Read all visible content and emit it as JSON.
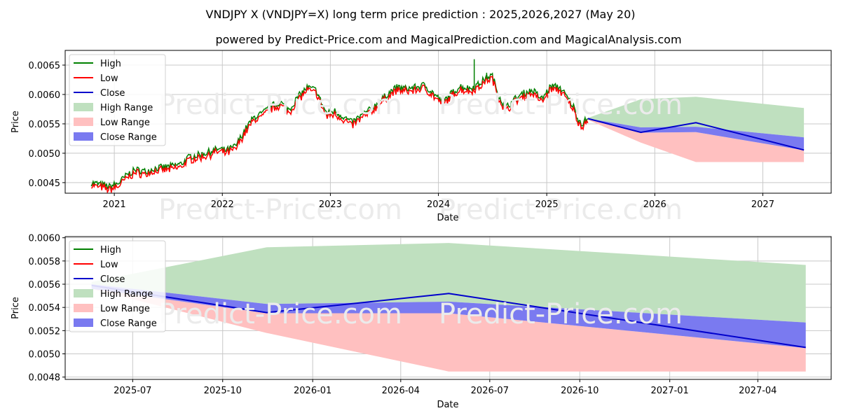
{
  "title": "VNDJPY X (VNDJPY=X) long term price prediction : 2025,2026,2027 (May 20)",
  "subtitle": "powered by Predict-Price.com and MagicalPrediction.com and MagicalAnalysis.com",
  "watermark": "Predict-Price.com",
  "colors": {
    "high": "#008000",
    "low": "#ff0000",
    "close": "#0000cc",
    "high_range": "#bfe0bf",
    "low_range": "#ffc0c0",
    "close_range": "#7a7af0",
    "grid": "#c8c8c8"
  },
  "chart_data": [
    {
      "type": "line",
      "xlabel": "Date",
      "ylabel": "Price",
      "xlim": [
        "2020-07-19",
        "2027-08-20"
      ],
      "ylim": [
        0.00432,
        0.00675
      ],
      "grid": true,
      "legend_position": "top-left",
      "x_ticks": [
        {
          "date": "2021-01-01",
          "label": "2021"
        },
        {
          "date": "2022-01-01",
          "label": "2022"
        },
        {
          "date": "2023-01-01",
          "label": "2023"
        },
        {
          "date": "2024-01-01",
          "label": "2024"
        },
        {
          "date": "2025-01-01",
          "label": "2025"
        },
        {
          "date": "2026-01-01",
          "label": "2026"
        },
        {
          "date": "2027-01-01",
          "label": "2027"
        }
      ],
      "y_ticks": [
        {
          "value": 0.0045,
          "label": "0.0045"
        },
        {
          "value": 0.005,
          "label": "0.0050"
        },
        {
          "value": 0.0055,
          "label": "0.0055"
        },
        {
          "value": 0.006,
          "label": "0.0060"
        },
        {
          "value": 0.0065,
          "label": "0.0065"
        }
      ],
      "legend": [
        "High",
        "Low",
        "Close",
        "High Range",
        "Low Range",
        "Close Range"
      ],
      "history": {
        "x": [
          "2020-10-15",
          "2020-11-15",
          "2020-12-15",
          "2021-01-15",
          "2021-02-15",
          "2021-03-15",
          "2021-04-15",
          "2021-05-15",
          "2021-06-15",
          "2021-07-15",
          "2021-08-15",
          "2021-09-15",
          "2021-10-15",
          "2021-11-15",
          "2021-12-15",
          "2022-01-15",
          "2022-02-15",
          "2022-03-15",
          "2022-04-01",
          "2022-04-20",
          "2022-05-15",
          "2022-06-15",
          "2022-07-15",
          "2022-08-15",
          "2022-09-15",
          "2022-10-15",
          "2022-11-15",
          "2022-12-01",
          "2022-12-20",
          "2023-01-15",
          "2023-02-15",
          "2023-03-15",
          "2023-04-15",
          "2023-05-15",
          "2023-06-15",
          "2023-07-15",
          "2023-08-15",
          "2023-09-15",
          "2023-10-15",
          "2023-11-15",
          "2023-12-15",
          "2024-01-15",
          "2024-02-15",
          "2024-03-15",
          "2024-04-15",
          "2024-05-15",
          "2024-06-15",
          "2024-07-01",
          "2024-07-20",
          "2024-08-15",
          "2024-09-15",
          "2024-10-15",
          "2024-11-15",
          "2024-12-15",
          "2025-01-15",
          "2025-02-15",
          "2025-03-15",
          "2025-04-01",
          "2025-04-15",
          "2025-05-01",
          "2025-05-20"
        ],
        "y": [
          0.00448,
          0.00445,
          0.00441,
          0.00447,
          0.00462,
          0.0047,
          0.00467,
          0.00472,
          0.00474,
          0.00476,
          0.0048,
          0.00493,
          0.00495,
          0.005,
          0.00505,
          0.00503,
          0.0051,
          0.00535,
          0.00548,
          0.0056,
          0.00565,
          0.00578,
          0.00585,
          0.00572,
          0.00595,
          0.0061,
          0.00605,
          0.00585,
          0.00565,
          0.0057,
          0.0056,
          0.0055,
          0.00562,
          0.00572,
          0.00585,
          0.006,
          0.0061,
          0.00608,
          0.0061,
          0.00614,
          0.006,
          0.00585,
          0.006,
          0.00612,
          0.00608,
          0.00615,
          0.00628,
          0.0063,
          0.006,
          0.00575,
          0.0059,
          0.006,
          0.00605,
          0.0059,
          0.00612,
          0.0061,
          0.0059,
          0.00578,
          0.00558,
          0.00548,
          0.00559
        ]
      },
      "high_spikes": [
        {
          "x": "2024-05-01",
          "y": 0.0066
        },
        {
          "x": "2024-06-12",
          "y": 0.00637
        }
      ],
      "forecast": {
        "x": [
          "2025-05-20",
          "2025-11-15",
          "2026-05-20",
          "2027-05-20"
        ],
        "close": [
          0.00559,
          0.005355,
          0.00552,
          0.005055
        ],
        "high_range_upper": [
          0.0056,
          0.00592,
          0.00596,
          0.00577
        ],
        "low_range_lower": [
          0.00557,
          0.00518,
          0.00485,
          0.00485
        ],
        "close_range_upper": [
          0.00559,
          0.00544,
          0.00545,
          0.00527
        ],
        "close_range_lower": [
          0.00558,
          0.00535,
          0.00536,
          0.00505
        ]
      }
    },
    {
      "type": "line",
      "xlabel": "Date",
      "ylabel": "Price",
      "xlim": [
        "2025-04-23",
        "2027-06-15"
      ],
      "ylim": [
        0.00478,
        0.00601
      ],
      "grid": true,
      "legend_position": "top-left",
      "x_ticks": [
        {
          "date": "2025-07-01",
          "label": "2025-07"
        },
        {
          "date": "2025-10-01",
          "label": "2025-10"
        },
        {
          "date": "2026-01-01",
          "label": "2026-01"
        },
        {
          "date": "2026-04-01",
          "label": "2026-04"
        },
        {
          "date": "2026-07-01",
          "label": "2026-07"
        },
        {
          "date": "2026-10-01",
          "label": "2026-10"
        },
        {
          "date": "2027-01-01",
          "label": "2027-01"
        },
        {
          "date": "2027-04-01",
          "label": "2027-04"
        }
      ],
      "y_ticks": [
        {
          "value": 0.0048,
          "label": "0.0048"
        },
        {
          "value": 0.005,
          "label": "0.0050"
        },
        {
          "value": 0.0052,
          "label": "0.0052"
        },
        {
          "value": 0.0054,
          "label": "0.0054"
        },
        {
          "value": 0.0056,
          "label": "0.0056"
        },
        {
          "value": 0.0058,
          "label": "0.0058"
        },
        {
          "value": 0.006,
          "label": "0.0060"
        }
      ],
      "legend": [
        "High",
        "Low",
        "Close",
        "High Range",
        "Low Range",
        "Close Range"
      ],
      "forecast": {
        "x": [
          "2025-05-20",
          "2025-11-15",
          "2026-05-20",
          "2027-05-20"
        ],
        "close": [
          0.00559,
          0.005355,
          0.00552,
          0.005055
        ],
        "high_range_upper": [
          0.00562,
          0.005918,
          0.005955,
          0.005766
        ],
        "low_range_lower": [
          0.00556,
          0.00518,
          0.004848,
          0.004848
        ],
        "close_range_upper": [
          0.0056,
          0.00543,
          0.00545,
          0.00527
        ],
        "close_range_lower": [
          0.00556,
          0.00535,
          0.00535,
          0.00505
        ]
      }
    }
  ]
}
